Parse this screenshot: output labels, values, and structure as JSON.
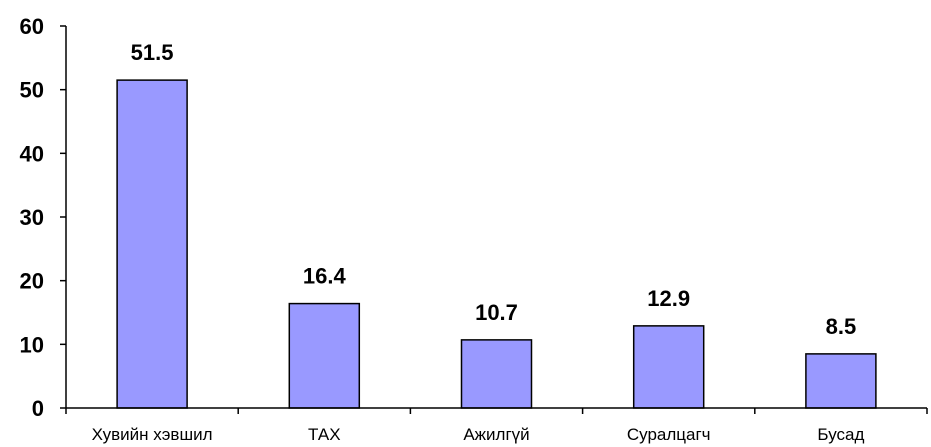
{
  "chart_data": {
    "type": "bar",
    "categories": [
      "Хувийн хэвшил",
      "ТАХ",
      "Ажилгүй",
      "Суралцагч",
      "Бусад"
    ],
    "values": [
      51.5,
      16.4,
      10.7,
      12.9,
      8.5
    ],
    "data_labels": [
      "51.5",
      "16.4",
      "10.7",
      "12.9",
      "8.5"
    ],
    "y_ticks": [
      "0",
      "10",
      "20",
      "30",
      "40",
      "50",
      "60"
    ],
    "ylim": [
      0,
      60
    ],
    "bar_color": "#9999ff",
    "grid": false,
    "legend": "none",
    "title": "",
    "xlabel": "",
    "ylabel": ""
  }
}
